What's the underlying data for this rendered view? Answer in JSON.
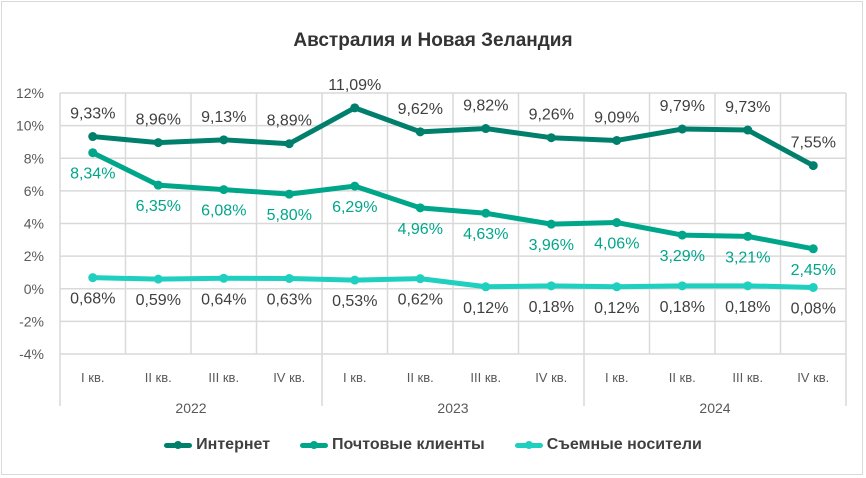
{
  "chart_data": {
    "type": "line",
    "title": "Австралия и Новая Зеландия",
    "categories": [
      "I кв.",
      "II кв.",
      "III кв.",
      "IV кв.",
      "I кв.",
      "II кв.",
      "III кв.",
      "IV кв.",
      "I кв.",
      "II кв.",
      "III кв.",
      "IV кв."
    ],
    "groups": [
      {
        "label": "2022",
        "span": 4
      },
      {
        "label": "2023",
        "span": 4
      },
      {
        "label": "2024",
        "span": 4
      }
    ],
    "ylim": [
      -4,
      12
    ],
    "yticks": [
      "-4%",
      "-2%",
      "0%",
      "2%",
      "4%",
      "6%",
      "8%",
      "10%",
      "12%"
    ],
    "grid": true,
    "legend_position": "bottom",
    "series": [
      {
        "name": "Интернет",
        "color": "#00806c",
        "label_color": "#404040",
        "label_pos": "above",
        "values": [
          9.33,
          8.96,
          9.13,
          8.89,
          11.09,
          9.62,
          9.82,
          9.26,
          9.09,
          9.79,
          9.73,
          7.55
        ],
        "labels": [
          "9,33%",
          "8,96%",
          "9,13%",
          "8,89%",
          "11,09%",
          "9,62%",
          "9,82%",
          "9,26%",
          "9,09%",
          "9,79%",
          "9,73%",
          "7,55%"
        ]
      },
      {
        "name": "Почтовые клиенты",
        "color": "#00a68a",
        "label_color": "#00a68a",
        "label_pos": "below",
        "values": [
          8.34,
          6.35,
          6.08,
          5.8,
          6.29,
          4.96,
          4.63,
          3.96,
          4.06,
          3.29,
          3.21,
          2.45
        ],
        "labels": [
          "8,34%",
          "6,35%",
          "6,08%",
          "5,80%",
          "6,29%",
          "4,96%",
          "4,63%",
          "3,96%",
          "4,06%",
          "3,29%",
          "3,21%",
          "2,45%"
        ]
      },
      {
        "name": "Съемные носители",
        "color": "#1fcfc0",
        "label_color": "#404040",
        "label_pos": "below",
        "values": [
          0.68,
          0.59,
          0.64,
          0.63,
          0.53,
          0.62,
          0.12,
          0.18,
          0.12,
          0.18,
          0.18,
          0.08
        ],
        "labels": [
          "0,68%",
          "0,59%",
          "0,64%",
          "0,63%",
          "0,53%",
          "0,62%",
          "0,12%",
          "0,18%",
          "0,12%",
          "0,18%",
          "0,18%",
          "0,08%"
        ]
      }
    ]
  }
}
